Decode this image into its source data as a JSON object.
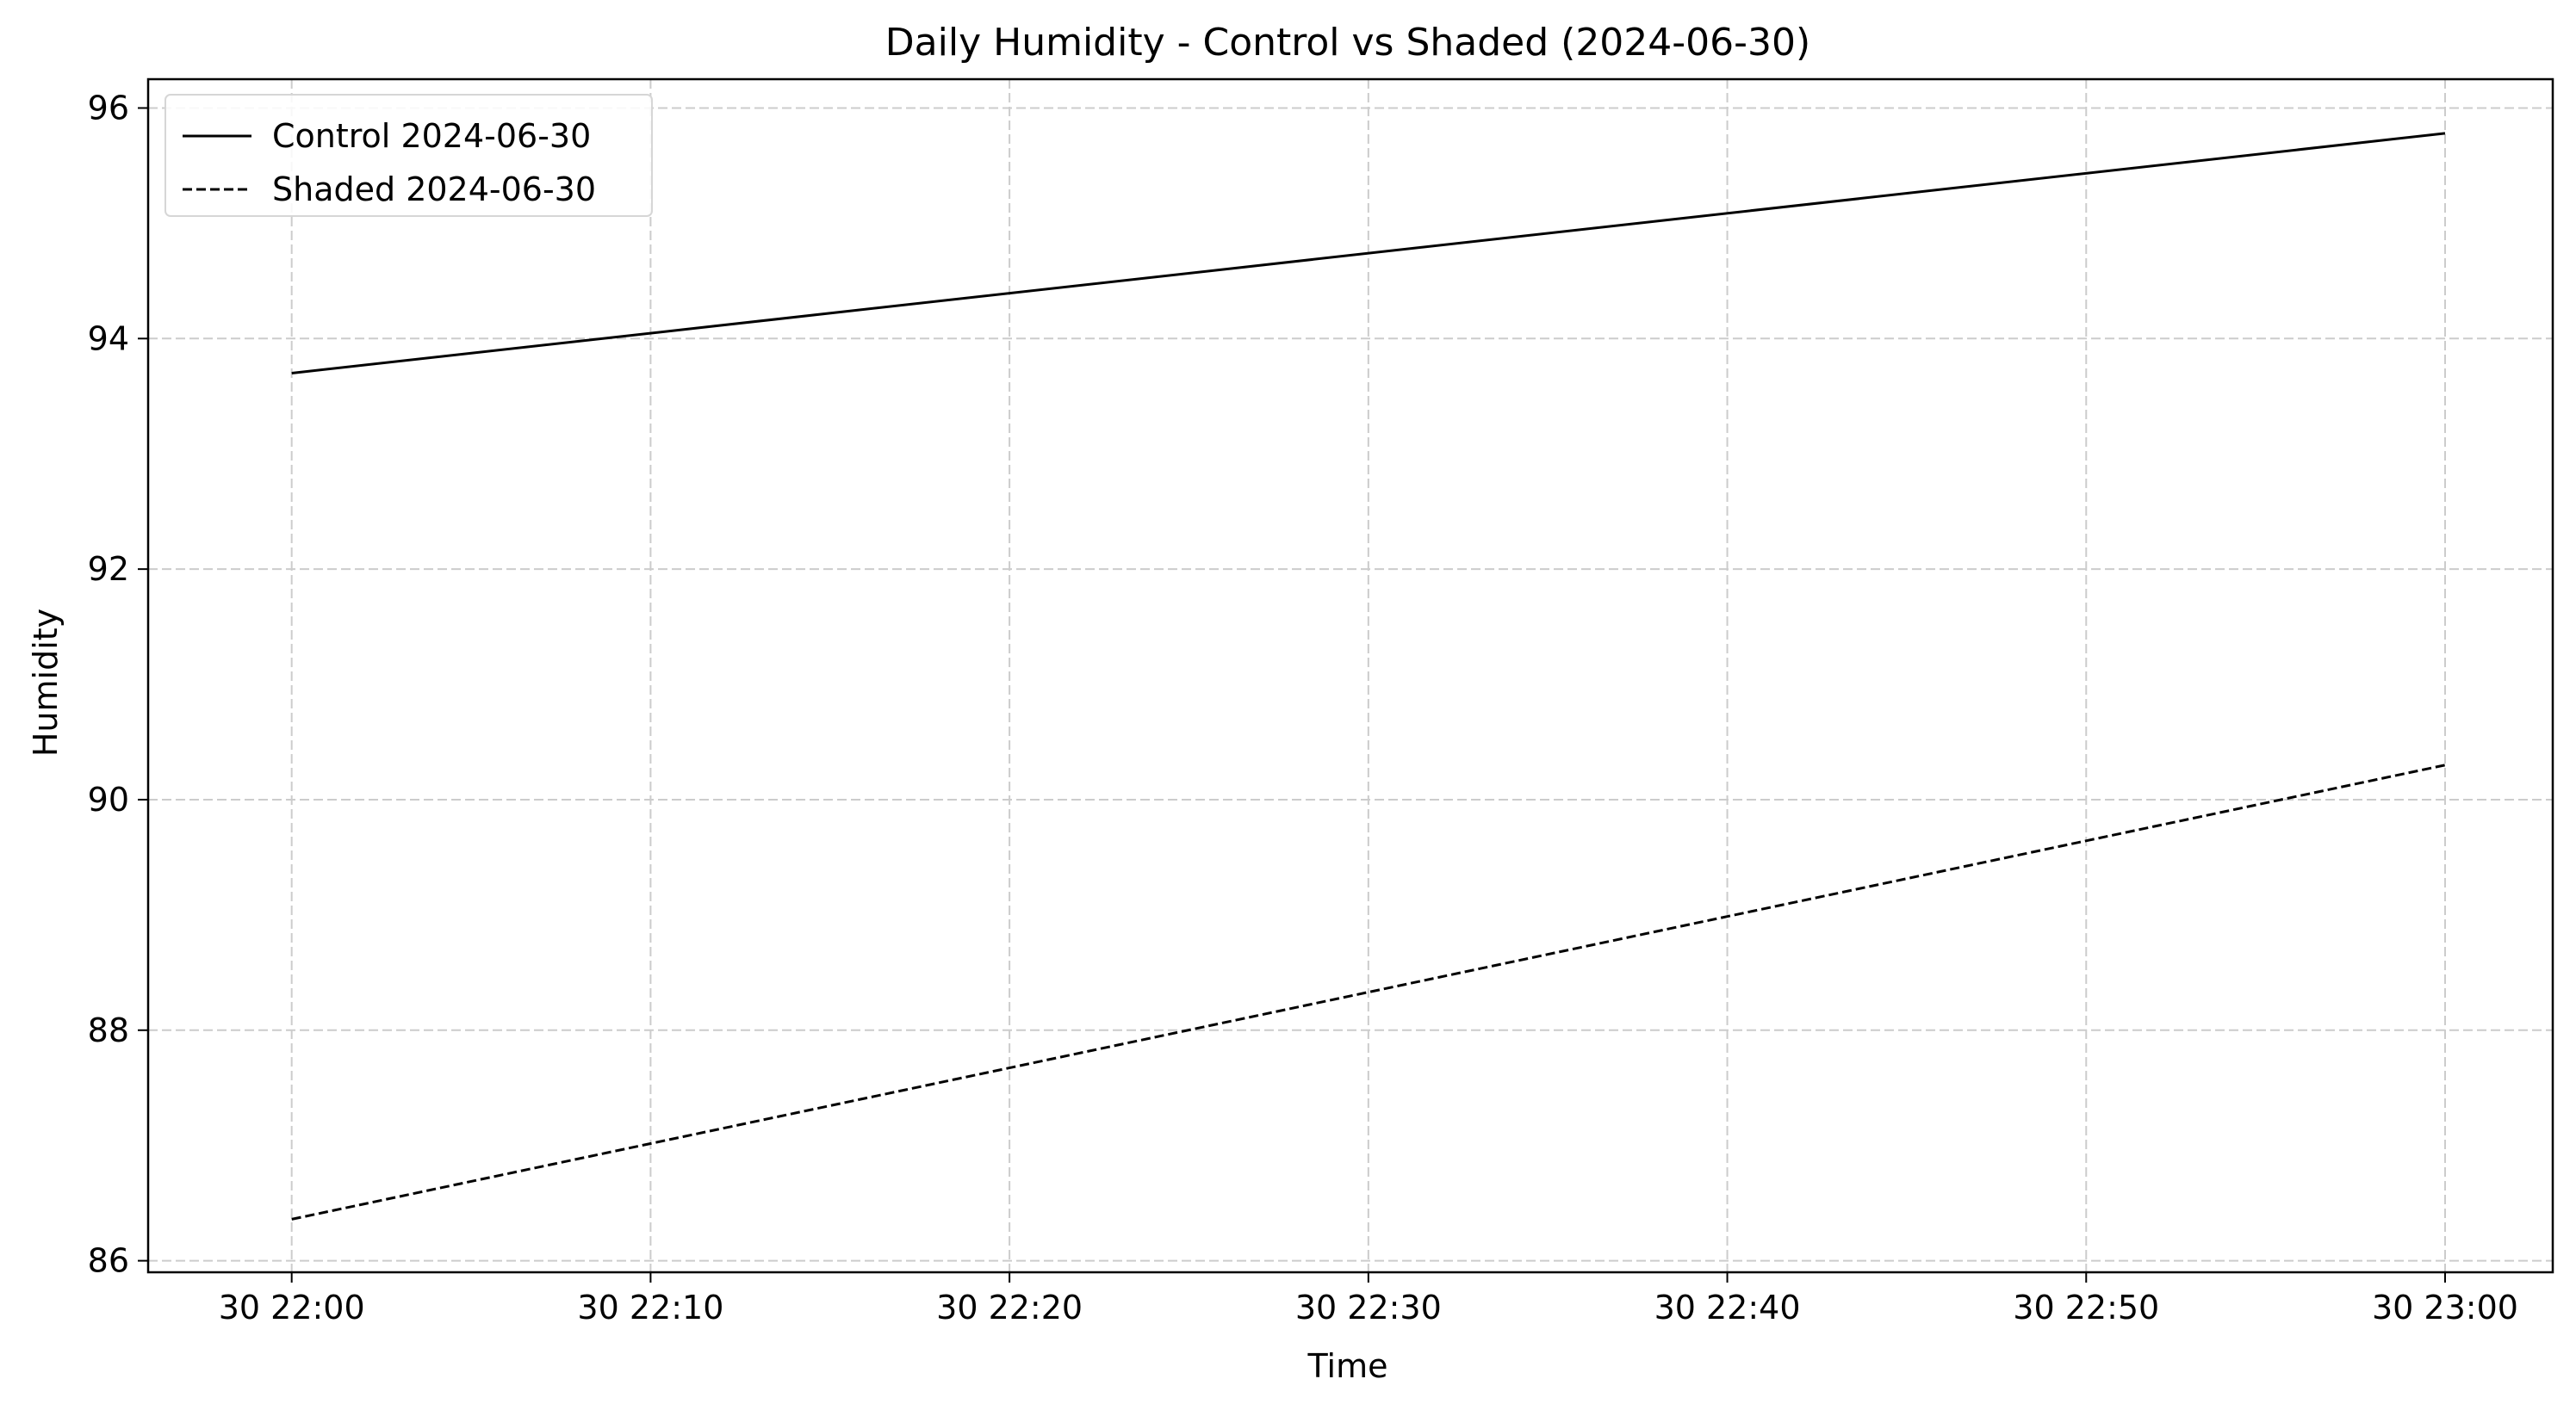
{
  "chart_data": {
    "type": "line",
    "title": "Daily Humidity - Control vs Shaded (2024-06-30)",
    "xlabel": "Time",
    "ylabel": "Humidity",
    "x": [
      "2024-06-30 22:00",
      "2024-06-30 23:00"
    ],
    "x_ticks": [
      "30 22:00",
      "30 22:10",
      "30 22:20",
      "30 22:30",
      "30 22:40",
      "30 22:50",
      "30 23:00"
    ],
    "y_ticks": [
      86,
      88,
      90,
      92,
      94,
      96
    ],
    "xlim": [
      "2024-06-30 21:56",
      "2024-06-30 23:03"
    ],
    "ylim": [
      85.9,
      96.25
    ],
    "grid": true,
    "legend_position": "top-left",
    "series": [
      {
        "name": "Control 2024-06-30",
        "values": [
          93.7,
          95.78
        ],
        "color": "#000000",
        "line_style": "solid"
      },
      {
        "name": "Shaded 2024-06-30",
        "values": [
          86.36,
          90.3
        ],
        "color": "#000000",
        "line_style": "dashed"
      }
    ]
  }
}
